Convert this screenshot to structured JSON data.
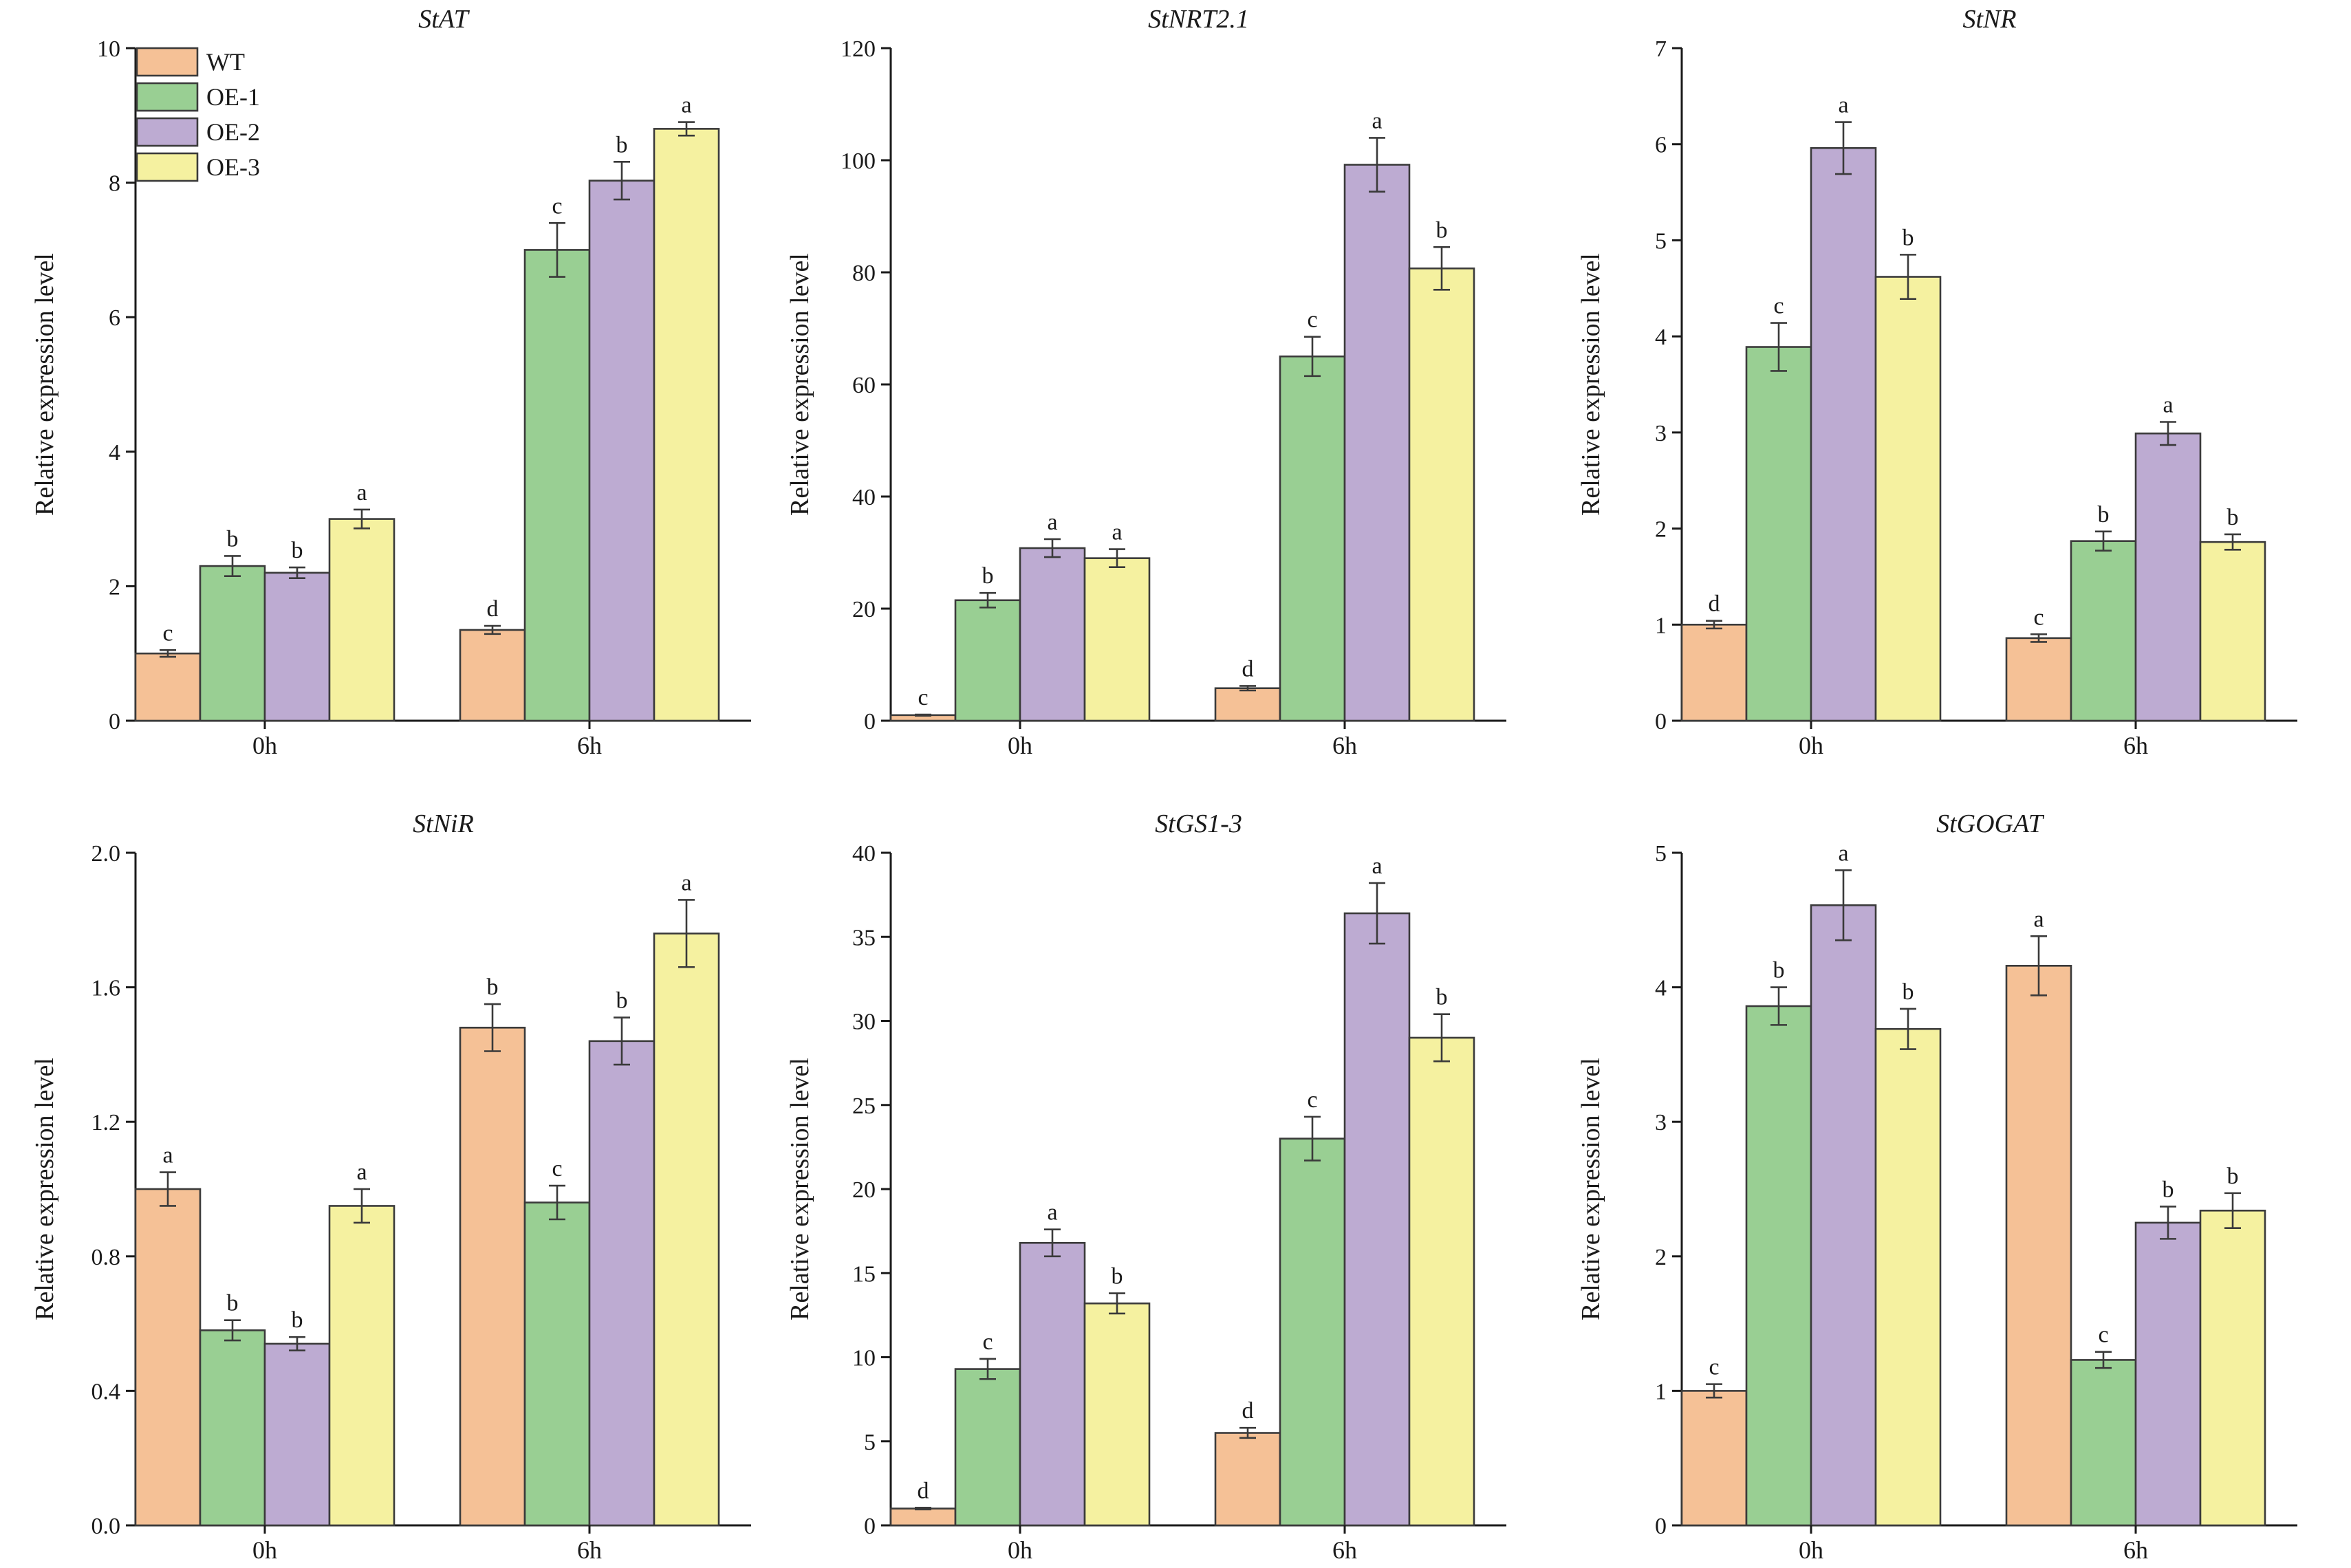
{
  "figure": {
    "legend": [
      {
        "name": "WT",
        "color": "#F5C196"
      },
      {
        "name": "OE-1",
        "color": "#99CF93"
      },
      {
        "name": "OE-2",
        "color": "#BDABD2"
      },
      {
        "name": "OE-3",
        "color": "#F5F1A0"
      }
    ]
  },
  "chart_data": [
    {
      "type": "bar",
      "title": "StAT",
      "ylabel": "Relative expression level",
      "categories": [
        "0h",
        "6h"
      ],
      "ylim": [
        0,
        10
      ],
      "yticks": [
        0,
        2,
        4,
        6,
        8,
        10
      ],
      "series": [
        {
          "name": "WT",
          "color": "#F5C196",
          "values": [
            1.0,
            1.35
          ],
          "errors": [
            0.05,
            0.06
          ],
          "letters": [
            "c",
            "d"
          ]
        },
        {
          "name": "OE-1",
          "color": "#99CF93",
          "values": [
            2.3,
            7.0
          ],
          "errors": [
            0.15,
            0.4
          ],
          "letters": [
            "b",
            "c"
          ]
        },
        {
          "name": "OE-2",
          "color": "#BDABD2",
          "values": [
            2.2,
            8.03
          ],
          "errors": [
            0.08,
            0.28
          ],
          "letters": [
            "b",
            "b"
          ]
        },
        {
          "name": "OE-3",
          "color": "#F5F1A0",
          "values": [
            3.0,
            8.8
          ],
          "errors": [
            0.14,
            0.1
          ],
          "letters": [
            "a",
            "a"
          ]
        }
      ]
    },
    {
      "type": "bar",
      "title": "StNRT2.1",
      "ylabel": "Relative expression level",
      "categories": [
        "0h",
        "6h"
      ],
      "ylim": [
        0,
        120
      ],
      "yticks": [
        0,
        20,
        40,
        60,
        80,
        100,
        120
      ],
      "series": [
        {
          "name": "WT",
          "color": "#F5C196",
          "values": [
            1.0,
            5.8
          ],
          "errors": [
            0.1,
            0.4
          ],
          "letters": [
            "c",
            "d"
          ]
        },
        {
          "name": "OE-1",
          "color": "#99CF93",
          "values": [
            21.5,
            65.0
          ],
          "errors": [
            1.3,
            3.5
          ],
          "letters": [
            "b",
            "c"
          ]
        },
        {
          "name": "OE-2",
          "color": "#BDABD2",
          "values": [
            30.8,
            99.2
          ],
          "errors": [
            1.6,
            4.8
          ],
          "letters": [
            "a",
            "a"
          ]
        },
        {
          "name": "OE-3",
          "color": "#F5F1A0",
          "values": [
            29.0,
            80.7
          ],
          "errors": [
            1.6,
            3.8
          ],
          "letters": [
            "a",
            "b"
          ]
        }
      ]
    },
    {
      "type": "bar",
      "title": "StNR",
      "ylabel": "Relative expression level",
      "categories": [
        "0h",
        "6h"
      ],
      "ylim": [
        0,
        7
      ],
      "yticks": [
        0,
        1,
        2,
        3,
        4,
        5,
        6,
        7
      ],
      "series": [
        {
          "name": "WT",
          "color": "#F5C196",
          "values": [
            1.0,
            0.86
          ],
          "errors": [
            0.04,
            0.04
          ],
          "letters": [
            "d",
            "c"
          ]
        },
        {
          "name": "OE-1",
          "color": "#99CF93",
          "values": [
            3.89,
            1.87
          ],
          "errors": [
            0.25,
            0.1
          ],
          "letters": [
            "c",
            "b"
          ]
        },
        {
          "name": "OE-2",
          "color": "#BDABD2",
          "values": [
            5.96,
            2.99
          ],
          "errors": [
            0.27,
            0.12
          ],
          "letters": [
            "a",
            "a"
          ]
        },
        {
          "name": "OE-3",
          "color": "#F5F1A0",
          "values": [
            4.62,
            1.86
          ],
          "errors": [
            0.23,
            0.08
          ],
          "letters": [
            "b",
            "b"
          ]
        }
      ]
    },
    {
      "type": "bar",
      "title": "StNiR",
      "ylabel": "Relative expression level",
      "categories": [
        "0h",
        "6h"
      ],
      "ylim": [
        0,
        2
      ],
      "yticks": [
        0,
        0.4,
        0.8,
        1.2,
        1.6,
        2.0
      ],
      "ytick_labels": [
        "0.0",
        "0.4",
        "0.8",
        "1.2",
        "1.6",
        "2.0"
      ],
      "series": [
        {
          "name": "WT",
          "color": "#F5C196",
          "values": [
            1.0,
            1.48
          ],
          "errors": [
            0.05,
            0.07
          ],
          "letters": [
            "a",
            "b"
          ]
        },
        {
          "name": "OE-1",
          "color": "#99CF93",
          "values": [
            0.58,
            0.96
          ],
          "errors": [
            0.03,
            0.05
          ],
          "letters": [
            "b",
            "c"
          ]
        },
        {
          "name": "OE-2",
          "color": "#BDABD2",
          "values": [
            0.54,
            1.44
          ],
          "errors": [
            0.02,
            0.07
          ],
          "letters": [
            "b",
            "b"
          ]
        },
        {
          "name": "OE-3",
          "color": "#F5F1A0",
          "values": [
            0.95,
            1.76
          ],
          "errors": [
            0.05,
            0.1
          ],
          "letters": [
            "a",
            "a"
          ]
        }
      ]
    },
    {
      "type": "bar",
      "title": "StGS1-3",
      "ylabel": "Relative expression level",
      "categories": [
        "0h",
        "6h"
      ],
      "ylim": [
        0,
        40
      ],
      "yticks": [
        0,
        5,
        10,
        15,
        20,
        25,
        30,
        35,
        40
      ],
      "series": [
        {
          "name": "WT",
          "color": "#F5C196",
          "values": [
            1.0,
            5.5
          ],
          "errors": [
            0.05,
            0.3
          ],
          "letters": [
            "d",
            "d"
          ]
        },
        {
          "name": "OE-1",
          "color": "#99CF93",
          "values": [
            9.3,
            23.0
          ],
          "errors": [
            0.6,
            1.3
          ],
          "letters": [
            "c",
            "c"
          ]
        },
        {
          "name": "OE-2",
          "color": "#BDABD2",
          "values": [
            16.8,
            36.4
          ],
          "errors": [
            0.8,
            1.8
          ],
          "letters": [
            "a",
            "a"
          ]
        },
        {
          "name": "OE-3",
          "color": "#F5F1A0",
          "values": [
            13.2,
            29.0
          ],
          "errors": [
            0.6,
            1.4
          ],
          "letters": [
            "b",
            "b"
          ]
        }
      ]
    },
    {
      "type": "bar",
      "title": "StGOGAT",
      "ylabel": "Relative expression level",
      "categories": [
        "0h",
        "6h"
      ],
      "ylim": [
        0,
        5
      ],
      "yticks": [
        0,
        1,
        2,
        3,
        4,
        5
      ],
      "series": [
        {
          "name": "WT",
          "color": "#F5C196",
          "values": [
            1.0,
            4.16
          ],
          "errors": [
            0.05,
            0.22
          ],
          "letters": [
            "c",
            "a"
          ]
        },
        {
          "name": "OE-1",
          "color": "#99CF93",
          "values": [
            3.86,
            1.23
          ],
          "errors": [
            0.14,
            0.06
          ],
          "letters": [
            "b",
            "c"
          ]
        },
        {
          "name": "OE-2",
          "color": "#BDABD2",
          "values": [
            4.61,
            2.25
          ],
          "errors": [
            0.26,
            0.12
          ],
          "letters": [
            "a",
            "b"
          ]
        },
        {
          "name": "OE-3",
          "color": "#F5F1A0",
          "values": [
            3.69,
            2.34
          ],
          "errors": [
            0.15,
            0.13
          ],
          "letters": [
            "b",
            "b"
          ]
        }
      ]
    }
  ]
}
